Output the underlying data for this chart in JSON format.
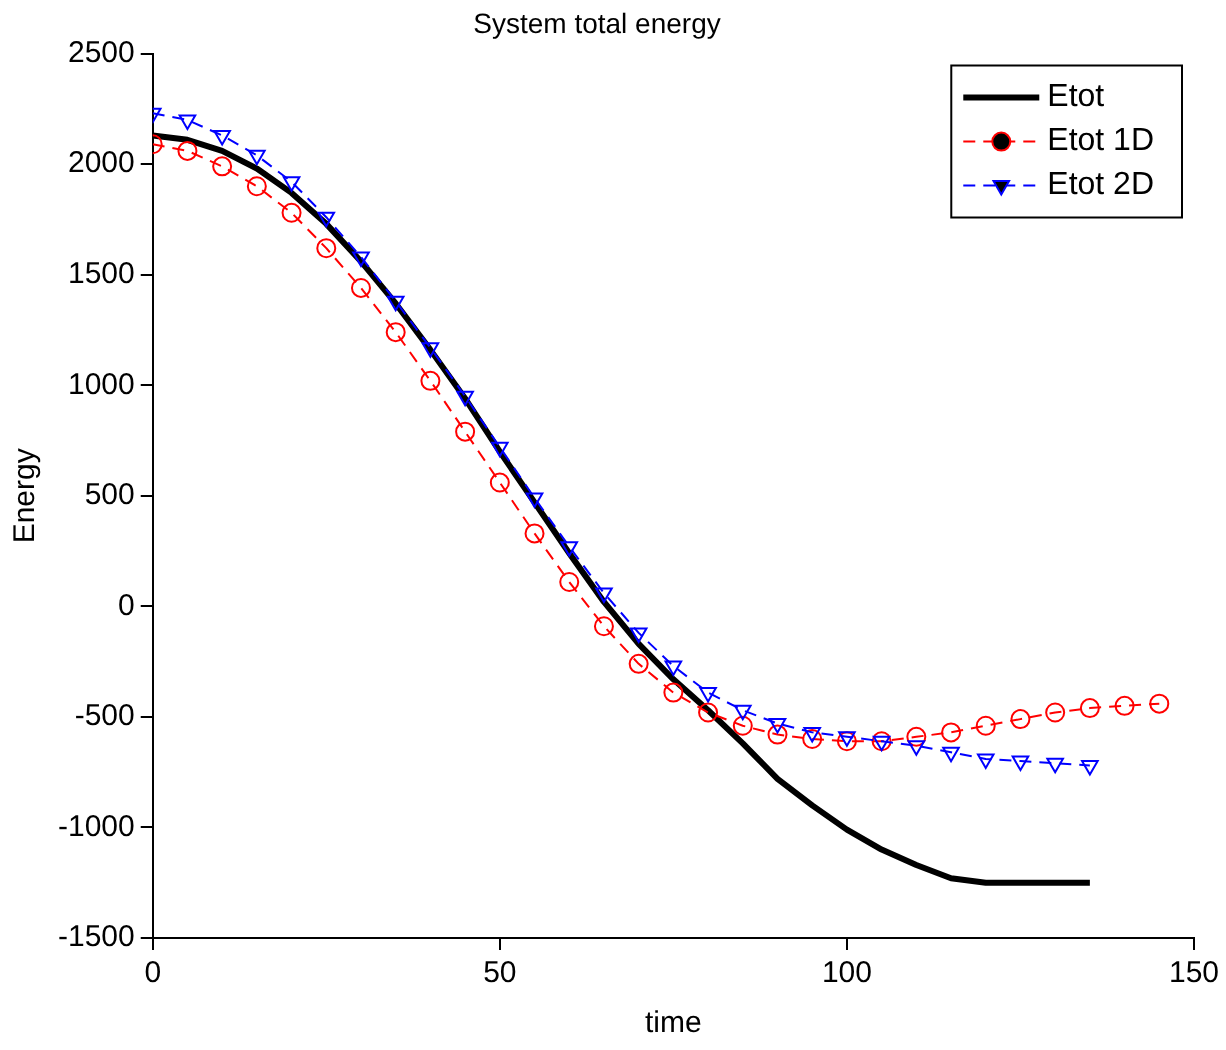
{
  "chart_data": {
    "type": "line",
    "title": "System total energy",
    "xlabel": "time",
    "ylabel": "Energy",
    "xlim": [
      0,
      150
    ],
    "xticks": [
      0,
      50,
      100,
      150
    ],
    "ylim": [
      -1500,
      2500
    ],
    "yticks": [
      -1500,
      -1000,
      -500,
      0,
      500,
      1000,
      1500,
      2000,
      2500
    ],
    "grid": false,
    "legend": "top right",
    "series": [
      {
        "name": "Etot",
        "color": "#000000",
        "marker": "none",
        "line_style": "solid",
        "x": [
          0,
          5,
          10,
          15,
          20,
          25,
          30,
          35,
          40,
          45,
          50,
          55,
          60,
          65,
          70,
          75,
          80,
          85,
          90,
          95,
          100,
          105,
          110,
          115,
          120,
          125,
          130,
          135
        ],
        "values": [
          2130,
          2110,
          2060,
          1980,
          1870,
          1730,
          1560,
          1370,
          1160,
          940,
          700,
          470,
          240,
          20,
          -170,
          -330,
          -470,
          -620,
          -780,
          -900,
          -1010,
          -1100,
          -1170,
          -1230,
          -1250,
          -1250,
          -1250,
          -1250
        ]
      },
      {
        "name": "Etot 1D",
        "color": "#ff0000",
        "marker": "circle",
        "line_style": "dashed",
        "x": [
          0,
          5,
          10,
          15,
          20,
          25,
          30,
          35,
          40,
          45,
          50,
          55,
          60,
          65,
          70,
          75,
          80,
          85,
          90,
          95,
          100,
          105,
          110,
          115,
          120,
          125,
          130,
          135,
          140,
          145
        ],
        "values": [
          2090,
          2060,
          1990,
          1900,
          1780,
          1620,
          1440,
          1240,
          1020,
          790,
          560,
          330,
          110,
          -90,
          -260,
          -390,
          -480,
          -540,
          -580,
          -600,
          -610,
          -610,
          -590,
          -570,
          -540,
          -510,
          -480,
          -460,
          -450,
          -440
        ]
      },
      {
        "name": "Etot 2D",
        "color": "#0000ff",
        "marker": "triangle",
        "line_style": "dashed",
        "x": [
          0,
          5,
          10,
          15,
          20,
          25,
          30,
          35,
          40,
          45,
          50,
          55,
          60,
          65,
          70,
          75,
          80,
          85,
          90,
          95,
          100,
          105,
          110,
          115,
          120,
          125,
          130,
          135
        ],
        "values": [
          2230,
          2200,
          2130,
          2040,
          1920,
          1760,
          1580,
          1380,
          1170,
          950,
          720,
          490,
          270,
          60,
          -120,
          -270,
          -390,
          -470,
          -530,
          -570,
          -590,
          -610,
          -630,
          -660,
          -690,
          -700,
          -710,
          -720
        ]
      }
    ]
  }
}
